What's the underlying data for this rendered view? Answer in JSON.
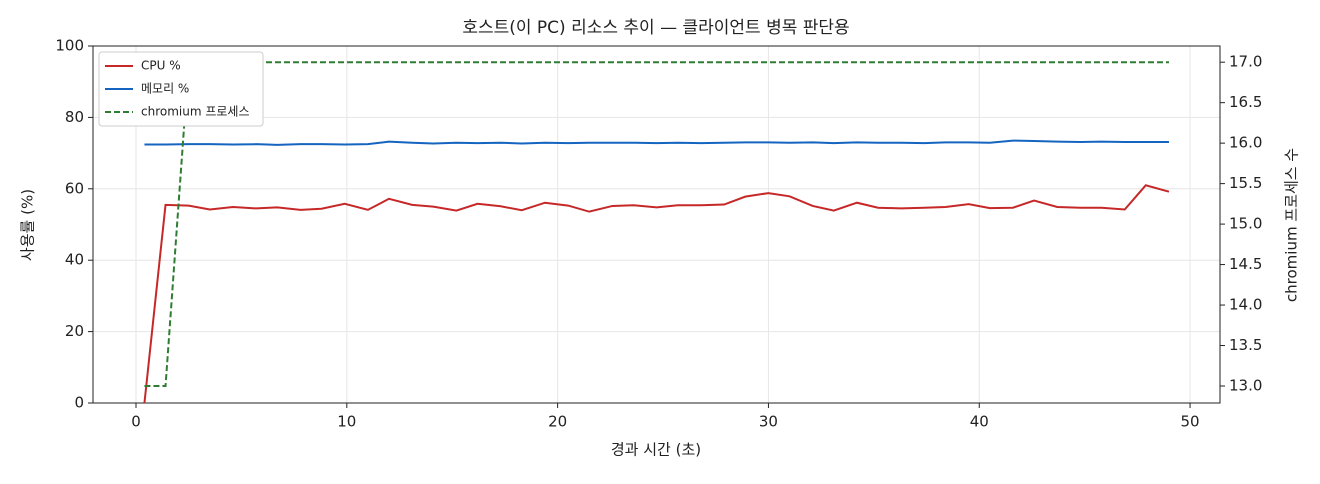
{
  "chart_data": {
    "type": "line",
    "title": "호스트(이 PC) 리소스 추이 — 클라이언트 병목 판단용",
    "xlabel": "경과 시간 (초)",
    "ylabel": "사용률 (%)",
    "y2label": "chromium 프로세스 수",
    "x": [
      0.4,
      1.4,
      2.5,
      3.5,
      4.6,
      5.7,
      6.7,
      7.8,
      8.8,
      9.9,
      11.0,
      12.0,
      13.1,
      14.1,
      15.2,
      16.2,
      17.3,
      18.3,
      19.4,
      20.5,
      21.5,
      22.6,
      23.6,
      24.7,
      25.7,
      26.8,
      27.9,
      28.9,
      30.0,
      31.0,
      32.1,
      33.1,
      34.2,
      35.2,
      36.3,
      37.4,
      38.4,
      39.5,
      40.5,
      41.6,
      42.6,
      43.7,
      44.8,
      45.8,
      46.9,
      47.9,
      49.0
    ],
    "series": [
      {
        "name": "CPU %",
        "color": "#c62828",
        "dash": false,
        "values": [
          0,
          55.5,
          55.3,
          54.2,
          54.9,
          54.5,
          54.8,
          54.1,
          54.4,
          55.8,
          54.1,
          57.2,
          55.5,
          55.0,
          53.9,
          55.8,
          55.1,
          54.0,
          56.1,
          55.3,
          53.6,
          55.2,
          55.4,
          54.8,
          55.4,
          55.4,
          55.6,
          57.8,
          58.8,
          57.9,
          55.2,
          53.9,
          56.1,
          54.7,
          54.5,
          54.7,
          54.9,
          55.7,
          54.6,
          54.7,
          56.7,
          54.9,
          54.7,
          54.7,
          54.2,
          61.0,
          59.2
        ]
      },
      {
        "name": "메모리 %",
        "color": "#1565c0",
        "dash": false,
        "values": [
          72.4,
          72.4,
          72.5,
          72.5,
          72.4,
          72.5,
          72.3,
          72.5,
          72.5,
          72.4,
          72.5,
          73.2,
          72.9,
          72.7,
          72.9,
          72.8,
          72.9,
          72.7,
          72.9,
          72.8,
          72.9,
          72.9,
          72.9,
          72.8,
          72.9,
          72.8,
          72.9,
          73.0,
          73.0,
          72.9,
          73.0,
          72.8,
          73.0,
          72.9,
          72.9,
          72.8,
          73.0,
          73.0,
          72.9,
          73.5,
          73.4,
          73.2,
          73.1,
          73.2,
          73.1,
          73.1,
          73.1
        ]
      },
      {
        "name": "chromium 프로세스",
        "color": "#2e7d32",
        "dash": true,
        "axis": "y2",
        "values": [
          13,
          13,
          17,
          17,
          17,
          17,
          17,
          17,
          17,
          17,
          17,
          17,
          17,
          17,
          17,
          17,
          17,
          17,
          17,
          17,
          17,
          17,
          17,
          17,
          17,
          17,
          17,
          17,
          17,
          17,
          17,
          17,
          17,
          17,
          17,
          17,
          17,
          17,
          17,
          17,
          17,
          17,
          17,
          17,
          17,
          17,
          17
        ]
      }
    ],
    "xlim": [
      -2.04,
      51.42
    ],
    "xticks": [
      0,
      10,
      20,
      30,
      40,
      50
    ],
    "ylim": [
      0,
      100
    ],
    "yticks": [
      0,
      20,
      40,
      60,
      80,
      100
    ],
    "y2lim": [
      12.79,
      17.2
    ],
    "y2ticks": [
      {
        "value": 13,
        "label": "13.0"
      },
      {
        "value": 13.5,
        "label": "13.5"
      },
      {
        "value": 14,
        "label": "14.0"
      },
      {
        "value": 14.5,
        "label": "14.5"
      },
      {
        "value": 15,
        "label": "15.0"
      },
      {
        "value": 15.5,
        "label": "15.5"
      },
      {
        "value": 16,
        "label": "16.0"
      },
      {
        "value": 16.5,
        "label": "16.5"
      },
      {
        "value": 17,
        "label": "17.0"
      }
    ],
    "grid": true,
    "legend": "upper left"
  }
}
